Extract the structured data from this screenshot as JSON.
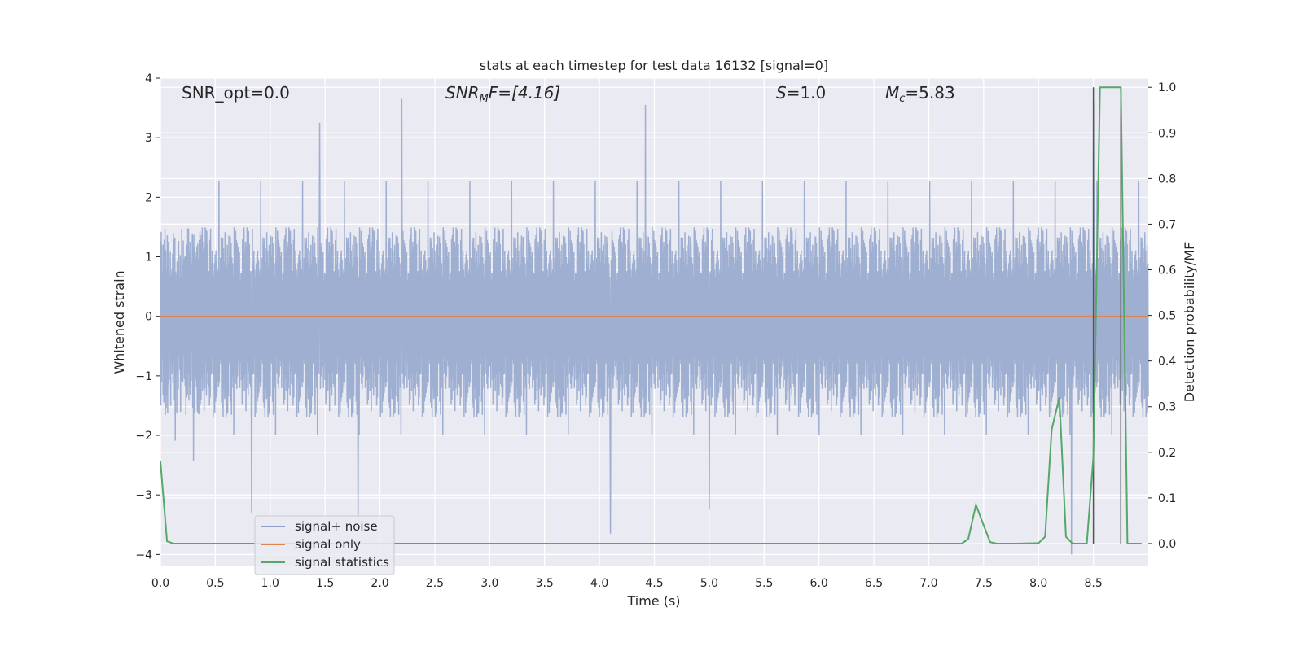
{
  "chart_data": {
    "type": "line",
    "title": "stats at each timestep for test data 16132 [signal=0]",
    "xlabel": "Time (s)",
    "ylabel_left": "Whitened strain",
    "ylabel_right": "Detection probability/MF",
    "xlim": [
      0,
      9
    ],
    "ylim_left": [
      -4.2,
      4.0
    ],
    "ylim_right": [
      -0.05,
      1.02
    ],
    "xticks": [
      "0.0",
      "0.5",
      "1.0",
      "1.5",
      "2.0",
      "2.5",
      "3.0",
      "3.5",
      "4.0",
      "4.5",
      "5.0",
      "5.5",
      "6.0",
      "6.5",
      "7.0",
      "7.5",
      "8.0",
      "8.5"
    ],
    "yticks_left": [
      "−4",
      "−3",
      "−2",
      "−1",
      "0",
      "1",
      "2",
      "3",
      "4"
    ],
    "yticks_right": [
      "0.0",
      "0.1",
      "0.2",
      "0.3",
      "0.4",
      "0.5",
      "0.6",
      "0.7",
      "0.8",
      "0.9",
      "1.0"
    ],
    "grid": true,
    "annotations": {
      "snr_opt": "SNR_opt=0.0",
      "snr_mf_sym": "SNR",
      "snr_mf_sub": "M",
      "snr_mf_rest": "F=[4.16]",
      "s_sym": "S",
      "s_rest": "=1.0",
      "mc_sym": "M",
      "mc_sub": "c",
      "mc_rest": "=5.83"
    },
    "legend": {
      "position": "lower-left",
      "entries": [
        {
          "name": "signal+ noise",
          "color": "#8da0cb"
        },
        {
          "name": "signal only",
          "color": "#dd8452"
        },
        {
          "name": "signal statistics",
          "color": "#55a868"
        }
      ]
    },
    "series": [
      {
        "name": "signal+ noise",
        "axis": "left",
        "kind": "noise",
        "color": "#9aaccf",
        "x_range": [
          0,
          9
        ],
        "typical_range": [
          -1.7,
          1.5
        ],
        "notable_peaks": [
          {
            "x": 0.83,
            "y": -3.3
          },
          {
            "x": 1.45,
            "y": 3.25
          },
          {
            "x": 1.8,
            "y": -3.6
          },
          {
            "x": 2.2,
            "y": 3.65
          },
          {
            "x": 4.1,
            "y": -3.65
          },
          {
            "x": 4.42,
            "y": 3.55
          },
          {
            "x": 5.0,
            "y": -3.25
          },
          {
            "x": 8.3,
            "y": -4.0
          },
          {
            "x": 8.5,
            "y": 3.6
          }
        ]
      },
      {
        "name": "signal only",
        "axis": "left",
        "color": "#dd8452",
        "x": [
          0,
          9
        ],
        "y": [
          0,
          0
        ]
      },
      {
        "name": "signal statistics",
        "axis": "right",
        "color": "#55a868",
        "x": [
          0.0,
          0.06,
          0.12,
          0.5,
          1.0,
          2.0,
          3.0,
          4.0,
          5.0,
          6.0,
          7.0,
          7.3,
          7.36,
          7.43,
          7.5,
          7.56,
          7.62,
          7.8,
          8.0,
          8.06,
          8.12,
          8.19,
          8.25,
          8.31,
          8.37,
          8.44,
          8.5,
          8.56,
          8.62,
          8.69,
          8.75,
          8.81,
          8.87,
          8.94
        ],
        "y": [
          0.18,
          0.005,
          0.0,
          0.0,
          0.0,
          0.0,
          0.0,
          0.0,
          0.0,
          0.0,
          0.0,
          0.0,
          0.01,
          0.085,
          0.04,
          0.003,
          0.0,
          0.0,
          0.001,
          0.015,
          0.25,
          0.32,
          0.015,
          0.0,
          0.0,
          0.0,
          0.19,
          1.0,
          1.0,
          1.0,
          1.0,
          0.0,
          0.0,
          0.0
        ]
      }
    ],
    "vlines": [
      8.5,
      8.75
    ]
  }
}
